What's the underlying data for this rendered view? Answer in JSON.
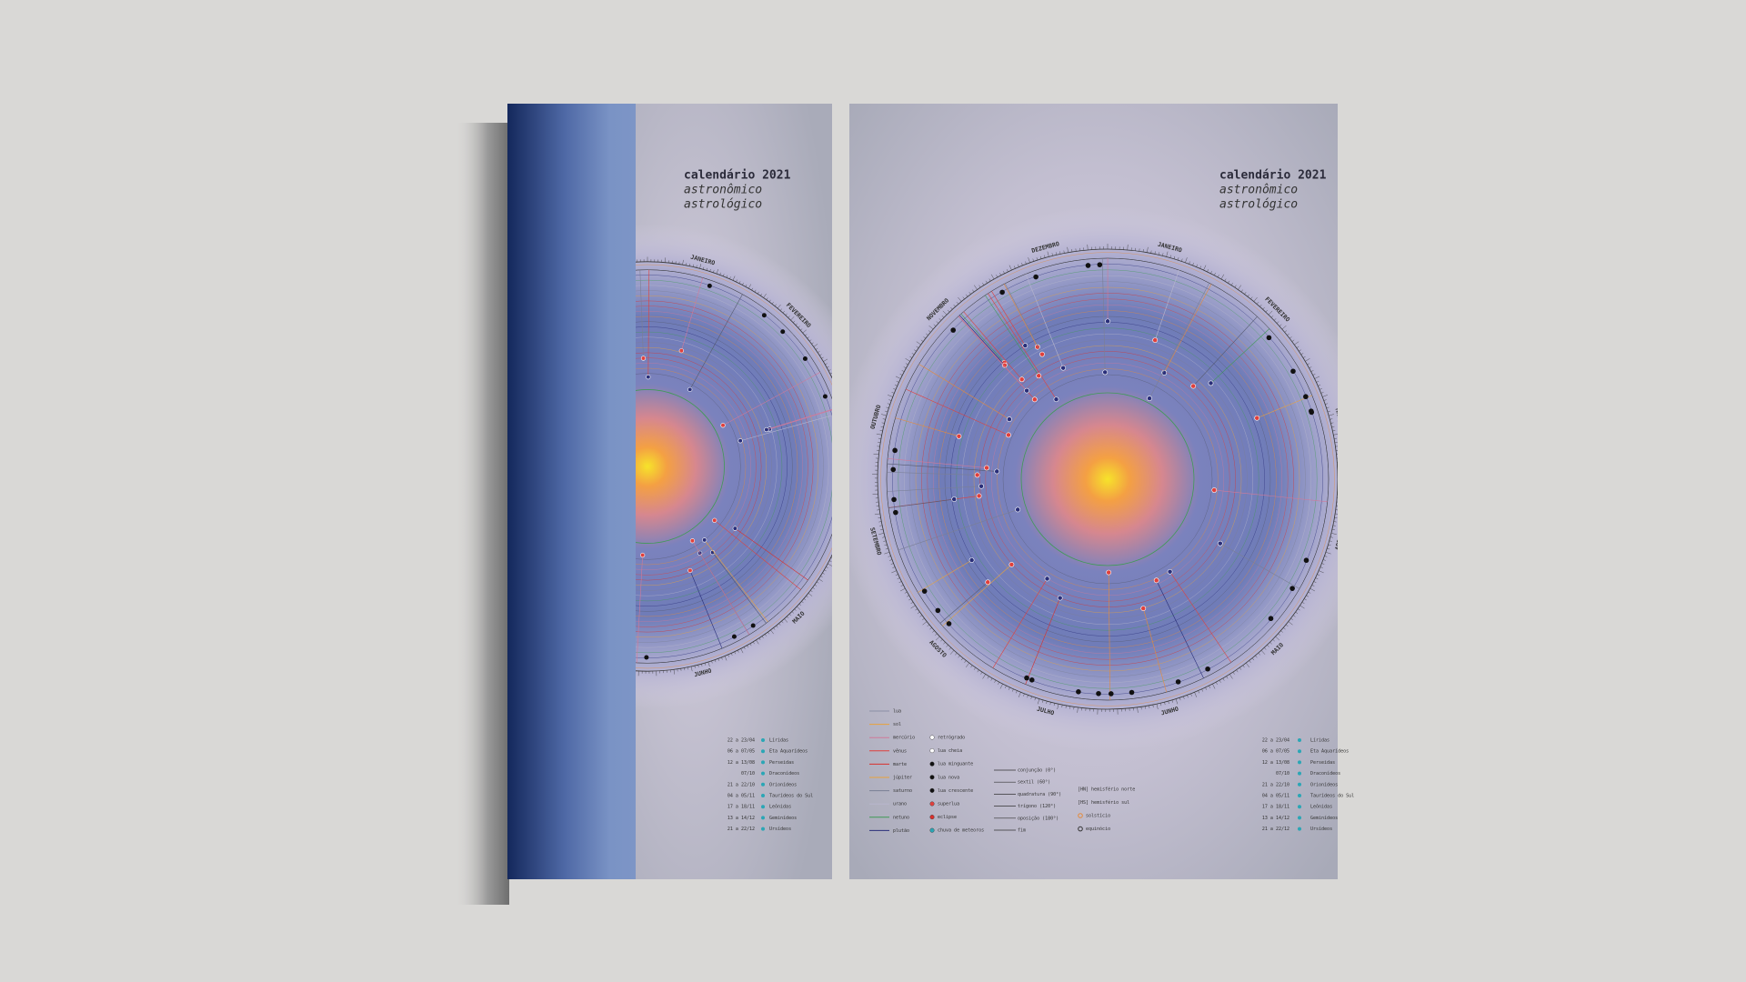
{
  "poster": {
    "title": "calendário 2021",
    "subtitle": [
      "astronômico",
      "astrológico"
    ]
  },
  "months": [
    "JANEIRO",
    "FEVEREIRO",
    "MARÇO",
    "ABRIL",
    "MAIO",
    "JUNHO",
    "JULHO",
    "AGOSTO",
    "SETEMBRO",
    "OUTUBRO",
    "NOVEMBRO",
    "DEZEMBRO"
  ],
  "legend": {
    "planets": [
      "lua",
      "sol",
      "mercúrio",
      "vênus",
      "marte",
      "júpiter",
      "saturno",
      "urano",
      "netuno",
      "plutão"
    ],
    "symbols": [
      "retrógrado",
      "lua cheia",
      "lua minguante",
      "lua nova",
      "lua crescente",
      "superlua",
      "eclipse",
      "chuva de meteoros"
    ],
    "aspects": [
      "conjunção (0°)",
      "sextil (60°)",
      "quadratura (90°)",
      "trígono (120°)",
      "oposição (180°)",
      "fim"
    ],
    "hemispheres": [
      "[HN] hemisfério norte",
      "[HS] hemisfério sul"
    ],
    "seasons": [
      "solstício",
      "equinócio"
    ]
  },
  "meteor_showers": [
    {
      "date": "22 a 23/04",
      "name": "Líridas"
    },
    {
      "date": "06 a 07/05",
      "name": "Eta Aquarídeos"
    },
    {
      "date": "12 a 13/08",
      "name": "Perseidas"
    },
    {
      "date": "07/10",
      "name": "Draconídeos"
    },
    {
      "date": "21 a 22/10",
      "name": "Orionídeos"
    },
    {
      "date": "04 a 05/11",
      "name": "Taurídeos do Sul"
    },
    {
      "date": "17 a 18/11",
      "name": "Leônidas"
    },
    {
      "date": "13 a 14/12",
      "name": "Geminídeos"
    },
    {
      "date": "21 a 22/12",
      "name": "Ursídeos"
    }
  ]
}
